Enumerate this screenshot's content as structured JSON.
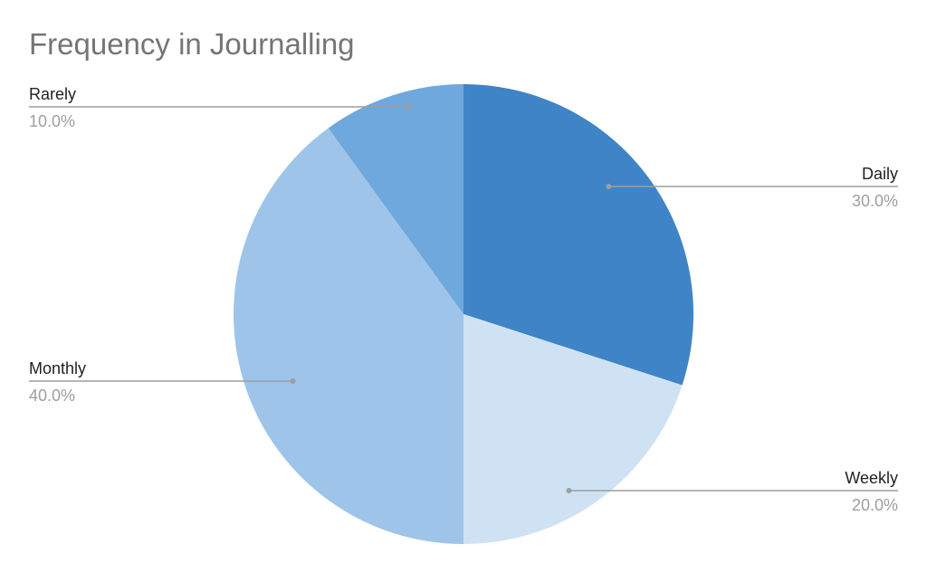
{
  "chart_data": {
    "type": "pie",
    "title": "Frequency in Journalling",
    "slices": [
      {
        "label": "Daily",
        "value": 30.0,
        "percent_label": "30.0%",
        "color": "#3f84c6"
      },
      {
        "label": "Weekly",
        "value": 20.0,
        "percent_label": "20.0%",
        "color": "#cfe2f3"
      },
      {
        "label": "Monthly",
        "value": 40.0,
        "percent_label": "40.0%",
        "color": "#9fc4e9"
      },
      {
        "label": "Rarely",
        "value": 10.0,
        "percent_label": "10.0%",
        "color": "#6fa8dc"
      }
    ],
    "start_angle": "12 o'clock",
    "direction": "clockwise",
    "legend": "none",
    "label_style": "leader lines with category and percent"
  },
  "colors": {
    "title": "#757575",
    "label_text": "#222222",
    "percent_text": "#9e9e9e",
    "leader_line": "#9e9e9e",
    "background": "#ffffff"
  }
}
